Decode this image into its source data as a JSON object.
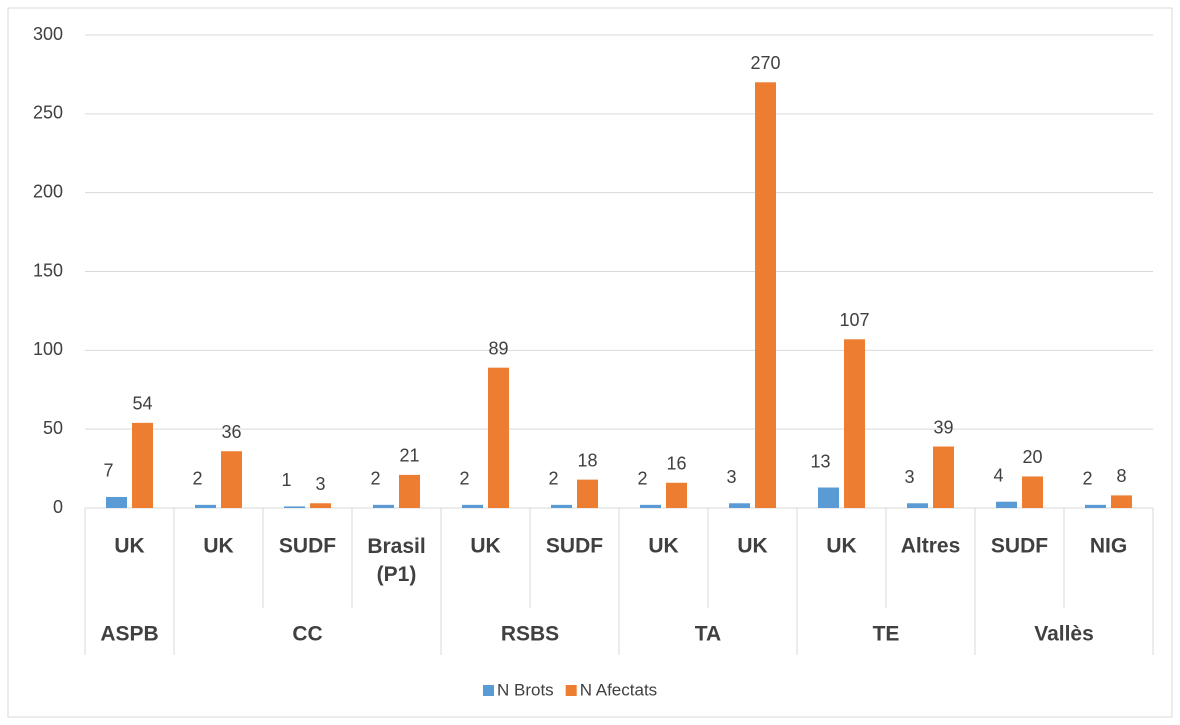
{
  "chart_data": {
    "type": "bar",
    "groups": [
      {
        "label": "ASPB",
        "categories": [
          "UK"
        ]
      },
      {
        "label": "CC",
        "categories": [
          "UK",
          "SUDF",
          "Brasil (P1)"
        ]
      },
      {
        "label": "RSBS",
        "categories": [
          "UK",
          "SUDF"
        ]
      },
      {
        "label": "TA",
        "categories": [
          "UK",
          "UK"
        ]
      },
      {
        "label": "TE",
        "categories": [
          "UK",
          "Altres"
        ]
      },
      {
        "label": "Vallès",
        "categories": [
          "SUDF",
          "NIG"
        ]
      }
    ],
    "series": [
      {
        "name": "N Brots",
        "color": "#5b9bd5",
        "values": [
          7,
          2,
          1,
          2,
          2,
          2,
          2,
          3,
          13,
          3,
          4,
          2
        ]
      },
      {
        "name": "N Afectats",
        "color": "#ed7d31",
        "values": [
          54,
          36,
          3,
          21,
          89,
          18,
          16,
          270,
          107,
          39,
          20,
          8
        ]
      }
    ],
    "ylim": [
      0,
      300
    ],
    "yticks": [
      0,
      50,
      100,
      150,
      200,
      250,
      300
    ],
    "grid": true,
    "legend": "bottom"
  }
}
